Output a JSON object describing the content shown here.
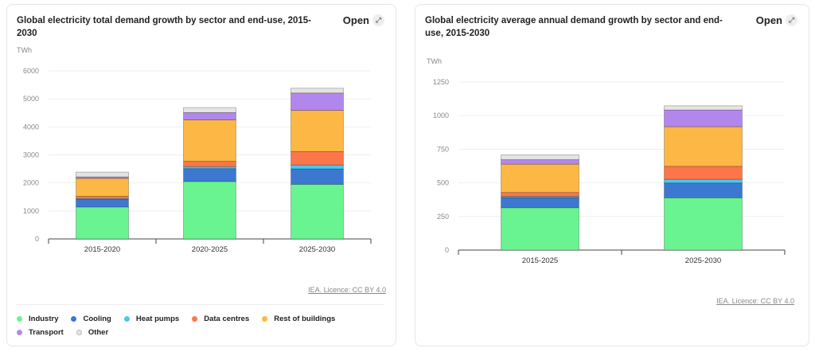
{
  "open_label": "Open",
  "open_icon": "external-expand-icon",
  "licence": "IEA. Licence: CC BY 4.0",
  "legend": [
    {
      "name": "Industry",
      "color": "#69f391"
    },
    {
      "name": "Cooling",
      "color": "#3c78d0"
    },
    {
      "name": "Heat pumps",
      "color": "#47c8f5"
    },
    {
      "name": "Data centres",
      "color": "#fd764a"
    },
    {
      "name": "Rest of buildings",
      "color": "#fdb744"
    },
    {
      "name": "Transport",
      "color": "#b287ed"
    },
    {
      "name": "Other",
      "color": "#e4e4e4"
    }
  ],
  "chart_data": [
    {
      "type": "bar",
      "stacked": true,
      "title": "Global electricity total demand growth by sector and end-use, 2015-2030",
      "ylabel": "TWh",
      "ylim": [
        0,
        6000
      ],
      "yticks": [
        0,
        1000,
        2000,
        3000,
        4000,
        5000,
        6000
      ],
      "grid": true,
      "legend_position": "bottom",
      "categories": [
        "2015-2020",
        "2020-2025",
        "2025-2030"
      ],
      "series": [
        {
          "name": "Industry",
          "values": [
            1140,
            2050,
            1950
          ]
        },
        {
          "name": "Cooling",
          "values": [
            270,
            460,
            550
          ]
        },
        {
          "name": "Heat pumps",
          "values": [
            30,
            70,
            140
          ]
        },
        {
          "name": "Data centres",
          "values": [
            80,
            190,
            480
          ]
        },
        {
          "name": "Rest of buildings",
          "values": [
            640,
            1480,
            1470
          ]
        },
        {
          "name": "Transport",
          "values": [
            56,
            260,
            620
          ]
        },
        {
          "name": "Other",
          "values": [
            170,
            180,
            170
          ]
        }
      ]
    },
    {
      "type": "bar",
      "stacked": true,
      "title": "Global electricity average annual demand growth by sector and end-use, 2015-2030",
      "ylabel": "TWh",
      "ylim": [
        0,
        1250
      ],
      "yticks": [
        0,
        250,
        500,
        750,
        1000,
        1250
      ],
      "grid": true,
      "categories": [
        "2015-2025",
        "2025-2030"
      ],
      "series": [
        {
          "name": "Industry",
          "values": [
            315,
            389
          ]
        },
        {
          "name": "Cooling",
          "values": [
            76,
            110
          ]
        },
        {
          "name": "Heat pumps",
          "values": [
            8,
            28
          ]
        },
        {
          "name": "Data centres",
          "values": [
            29,
            96
          ]
        },
        {
          "name": "Rest of buildings",
          "values": [
            211,
            295
          ]
        },
        {
          "name": "Transport",
          "values": [
            33,
            124
          ]
        },
        {
          "name": "Other",
          "values": [
            36,
            31
          ]
        }
      ]
    }
  ]
}
